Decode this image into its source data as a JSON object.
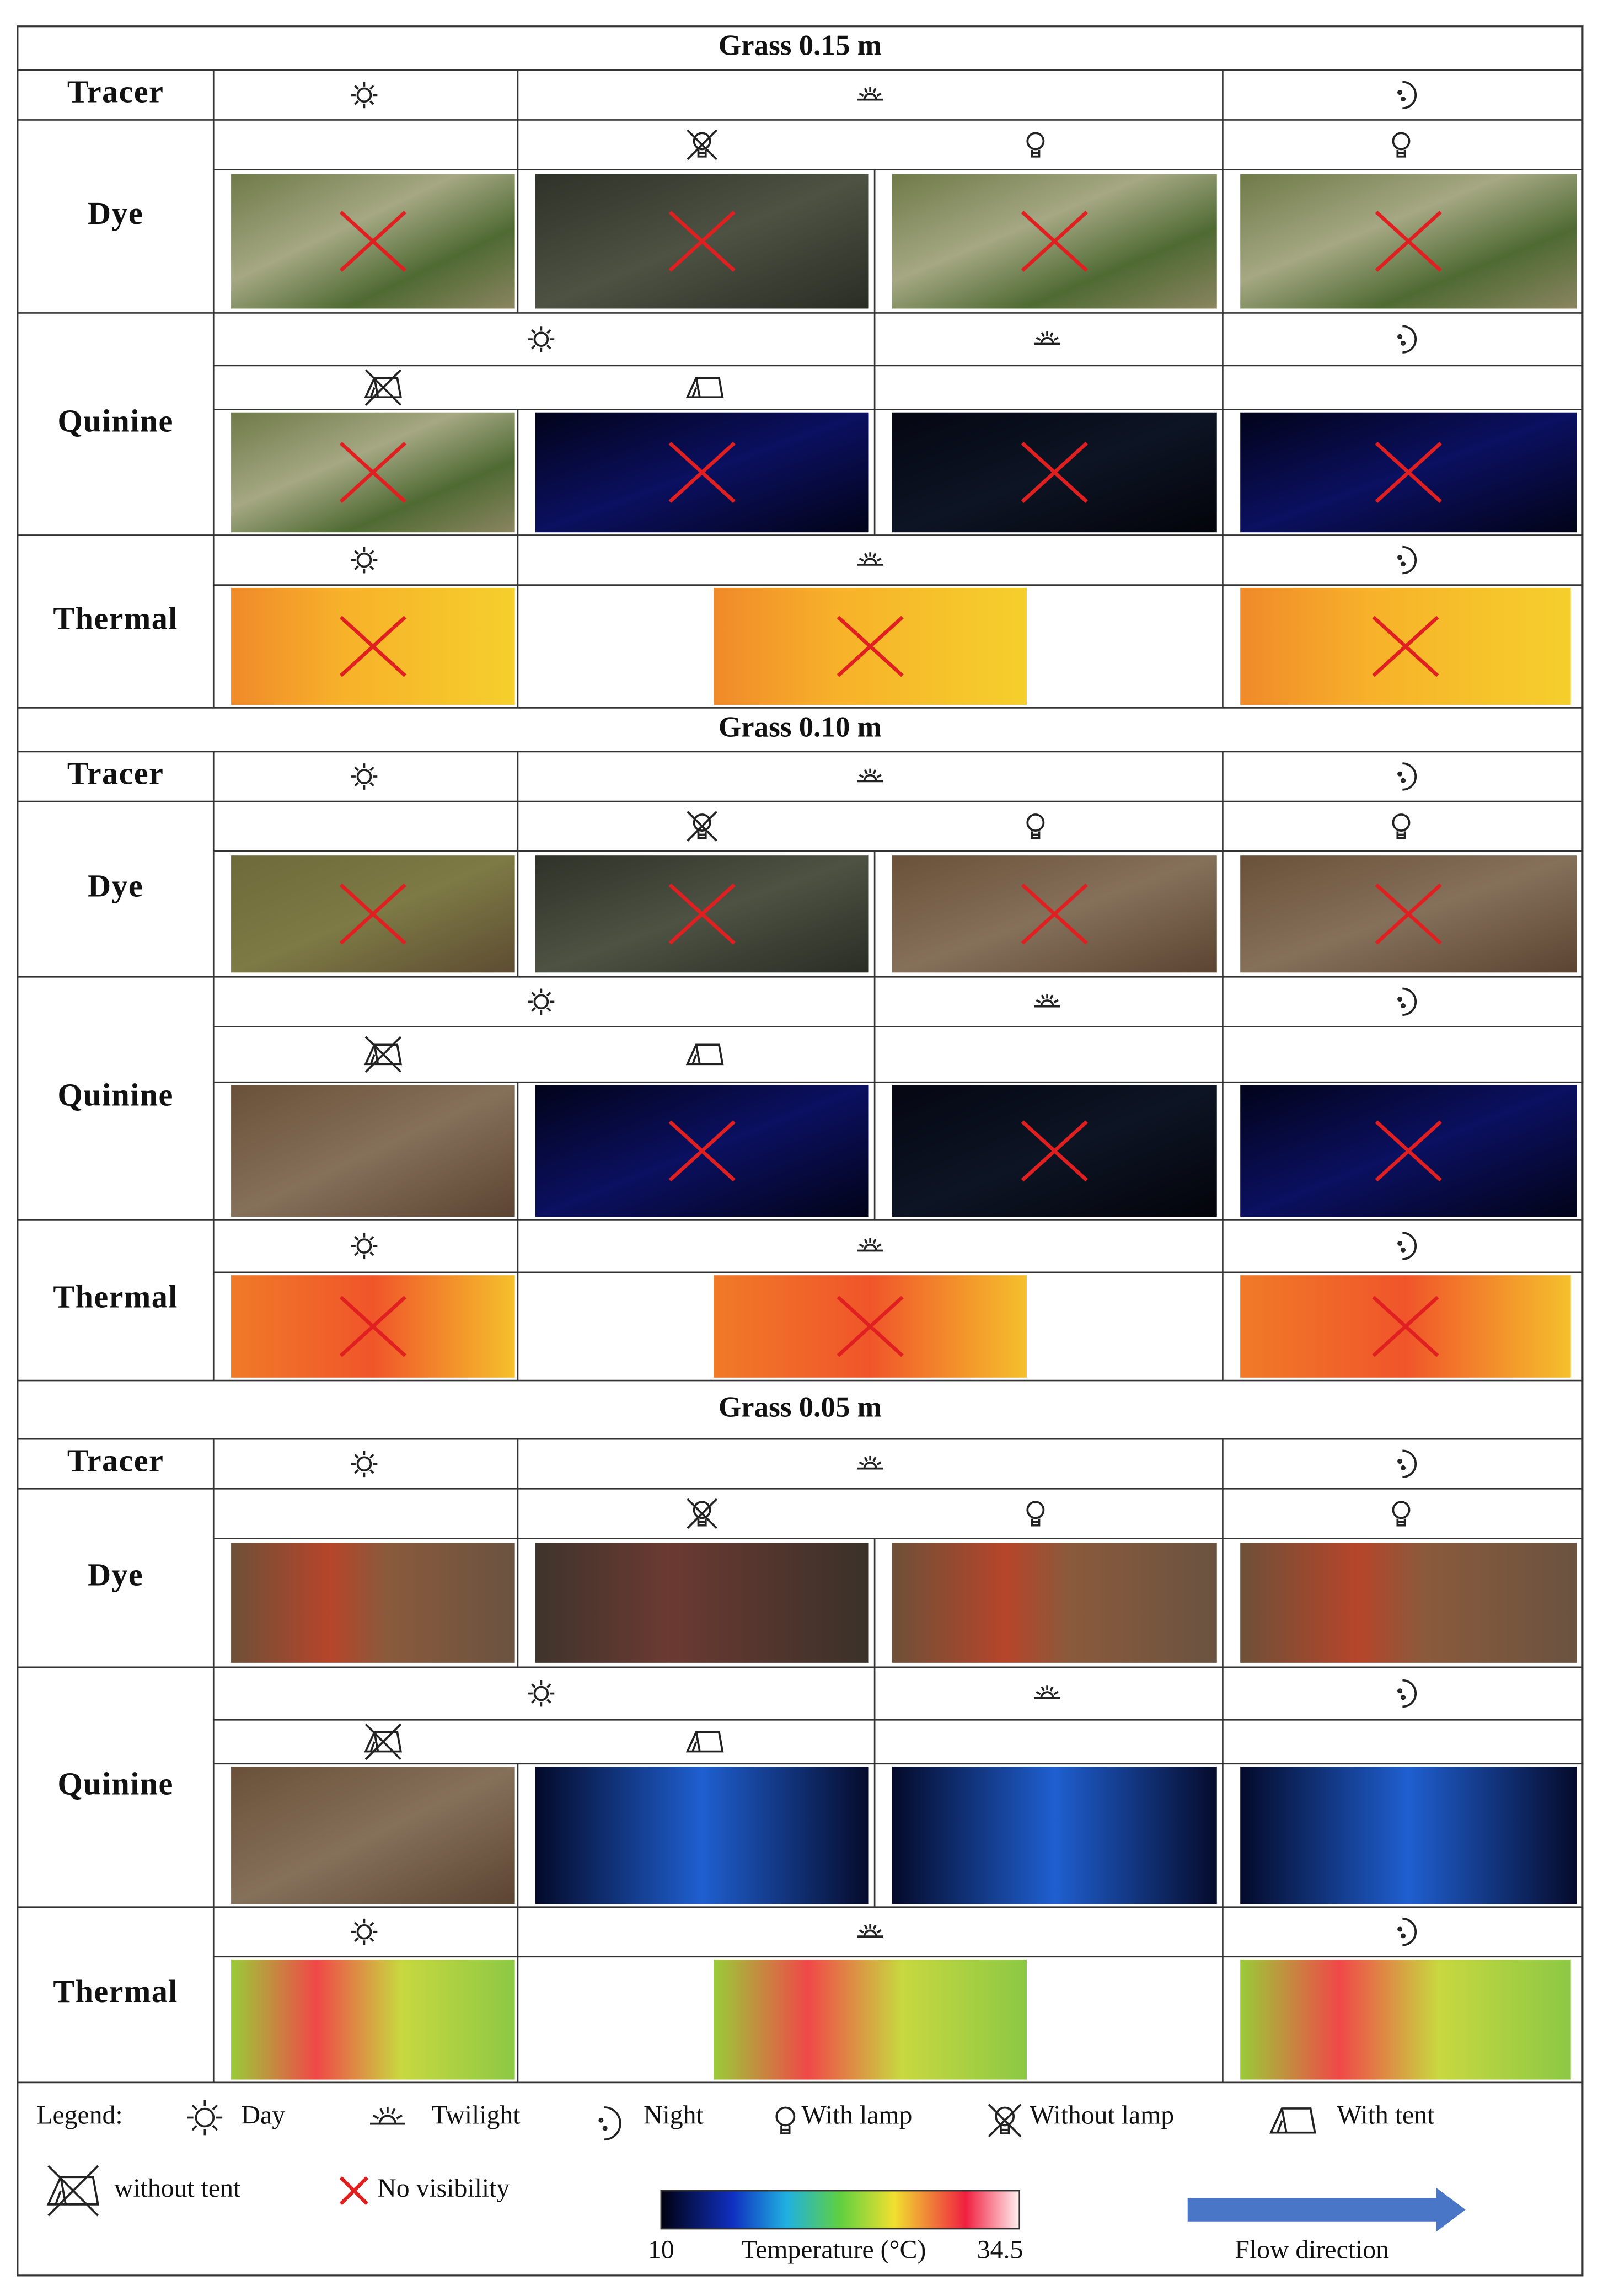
{
  "sections": [
    {
      "title": "Grass 0.15 m",
      "rows": [
        "Tracer",
        "Dye",
        "Quinine",
        "Thermal"
      ]
    },
    {
      "title": "Grass 0.10 m",
      "rows": [
        "Tracer",
        "Dye",
        "Quinine",
        "Thermal"
      ]
    },
    {
      "title": "Grass 0.05 m",
      "rows": [
        "Tracer",
        "Dye",
        "Quinine",
        "Thermal"
      ]
    }
  ],
  "legend": {
    "title": "Legend:",
    "items": [
      "Day",
      "Twilight",
      "Night",
      "With lamp",
      "Without lamp",
      "With tent",
      "without tent",
      "No visibility"
    ],
    "colorbar": {
      "min": 10,
      "label": "Temperature (°C)",
      "max": 34.5
    },
    "flow": "Flow direction"
  }
}
